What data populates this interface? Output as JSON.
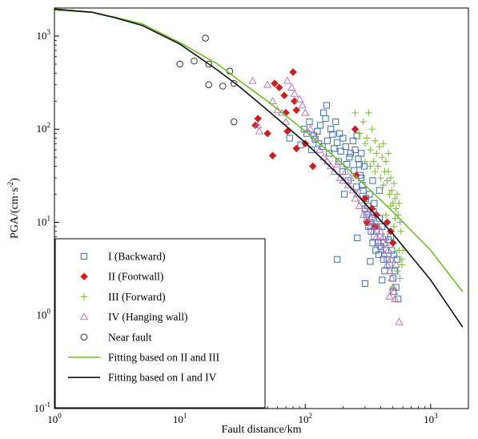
{
  "chart_data": {
    "type": "scatter",
    "xlabel": "Fault distance/km",
    "ylabel_parts": [
      "PGA/(cm·s",
      "-2",
      ")"
    ],
    "xscale": "log",
    "yscale": "log",
    "xlim": [
      1,
      2000
    ],
    "ylim": [
      0.1,
      2000
    ],
    "x_ticks": [
      {
        "value": 1,
        "base": "10",
        "exp": "0"
      },
      {
        "value": 10,
        "base": "10",
        "exp": "1"
      },
      {
        "value": 100,
        "base": "10",
        "exp": "2"
      },
      {
        "value": 1000,
        "base": "10",
        "exp": "3"
      }
    ],
    "y_ticks": [
      {
        "value": 0.1,
        "base": "10",
        "exp": "-1"
      },
      {
        "value": 1,
        "base": "10",
        "exp": "0"
      },
      {
        "value": 10,
        "base": "10",
        "exp": "1"
      },
      {
        "value": 100,
        "base": "10",
        "exp": "2"
      },
      {
        "value": 1000,
        "base": "10",
        "exp": "3"
      }
    ],
    "legend_position": "bottom-left",
    "series": [
      {
        "name": "I (Backward)",
        "marker": "square",
        "color": "#3a6fb0",
        "points": [
          [
            75,
            80
          ],
          [
            92,
            68
          ],
          [
            98,
            100
          ],
          [
            103,
            90
          ],
          [
            108,
            120
          ],
          [
            112,
            60
          ],
          [
            117,
            85
          ],
          [
            120,
            78
          ],
          [
            125,
            95
          ],
          [
            128,
            70
          ],
          [
            132,
            110
          ],
          [
            137,
            65
          ],
          [
            140,
            150
          ],
          [
            145,
            130
          ],
          [
            148,
            180
          ],
          [
            150,
            75
          ],
          [
            155,
            55
          ],
          [
            160,
            100
          ],
          [
            165,
            88
          ],
          [
            170,
            62
          ],
          [
            175,
            120
          ],
          [
            180,
            72
          ],
          [
            185,
            45
          ],
          [
            188,
            90
          ],
          [
            192,
            58
          ],
          [
            198,
            35
          ],
          [
            200,
            80
          ],
          [
            205,
            20
          ],
          [
            210,
            65
          ],
          [
            215,
            42
          ],
          [
            220,
            28
          ],
          [
            225,
            50
          ],
          [
            230,
            55
          ],
          [
            240,
            75
          ],
          [
            245,
            36
          ],
          [
            250,
            60
          ],
          [
            255,
            24
          ],
          [
            258,
            85
          ],
          [
            265,
            48
          ],
          [
            270,
            42
          ],
          [
            275,
            32
          ],
          [
            280,
            55
          ],
          [
            285,
            25
          ],
          [
            290,
            22
          ],
          [
            295,
            40
          ],
          [
            300,
            14
          ],
          [
            305,
            18
          ],
          [
            310,
            12
          ],
          [
            315,
            15
          ],
          [
            320,
            9
          ],
          [
            325,
            20
          ],
          [
            330,
            10
          ],
          [
            335,
            8
          ],
          [
            340,
            11
          ],
          [
            345,
            6
          ],
          [
            350,
            13
          ],
          [
            355,
            7
          ],
          [
            360,
            9
          ],
          [
            365,
            5
          ],
          [
            370,
            8
          ],
          [
            380,
            6
          ],
          [
            385,
            4.5
          ],
          [
            390,
            11
          ],
          [
            395,
            7
          ],
          [
            400,
            5.5
          ],
          [
            410,
            9
          ],
          [
            420,
            4
          ],
          [
            425,
            6
          ],
          [
            430,
            3
          ],
          [
            440,
            5
          ],
          [
            450,
            4
          ],
          [
            460,
            6.5
          ],
          [
            470,
            3.5
          ],
          [
            480,
            7
          ],
          [
            490,
            5
          ],
          [
            500,
            2.5
          ],
          [
            510,
            4.5
          ],
          [
            520,
            3
          ],
          [
            530,
            2
          ],
          [
            540,
            4
          ],
          [
            550,
            1.5
          ],
          [
            355,
            16
          ],
          [
            260,
            6.8
          ],
          [
            180,
            4
          ],
          [
            300,
            2.2
          ],
          [
            410,
            2.4
          ],
          [
            345,
            28
          ],
          [
            280,
            30
          ],
          [
            390,
            22
          ],
          [
            330,
            3.8
          ],
          [
            505,
            1.8
          ]
        ]
      },
      {
        "name": "II (Footwall)",
        "marker": "diamond",
        "color": "#cc1f1f",
        "points": [
          [
            40,
            110
          ],
          [
            42,
            130
          ],
          [
            50,
            90
          ],
          [
            55,
            52
          ],
          [
            57,
            310
          ],
          [
            62,
            280
          ],
          [
            68,
            230
          ],
          [
            70,
            150
          ],
          [
            72,
            95
          ],
          [
            80,
            410
          ],
          [
            82,
            200
          ],
          [
            85,
            160
          ],
          [
            85,
            62
          ],
          [
            100,
            70
          ],
          [
            115,
            40
          ],
          [
            250,
            100
          ],
          [
            255,
            32
          ],
          [
            300,
            18
          ],
          [
            310,
            10
          ],
          [
            340,
            14
          ],
          [
            360,
            9
          ],
          [
            370,
            12
          ],
          [
            450,
            10
          ],
          [
            480,
            8
          ],
          [
            500,
            6
          ]
        ]
      },
      {
        "name": "III (Forward)",
        "marker": "plus",
        "color": "#7fbf3f",
        "points": [
          [
            250,
            150
          ],
          [
            270,
            90
          ],
          [
            290,
            120
          ],
          [
            300,
            70
          ],
          [
            310,
            80
          ],
          [
            320,
            150
          ],
          [
            330,
            60
          ],
          [
            340,
            100
          ],
          [
            350,
            45
          ],
          [
            360,
            75
          ],
          [
            370,
            55
          ],
          [
            380,
            40
          ],
          [
            390,
            65
          ],
          [
            400,
            30
          ],
          [
            410,
            50
          ],
          [
            420,
            25
          ],
          [
            430,
            35
          ],
          [
            440,
            45
          ],
          [
            450,
            28
          ],
          [
            460,
            35
          ],
          [
            470,
            20
          ],
          [
            480,
            30
          ],
          [
            490,
            22
          ],
          [
            500,
            16
          ],
          [
            510,
            26
          ],
          [
            520,
            18
          ],
          [
            530,
            14
          ],
          [
            540,
            20
          ],
          [
            550,
            12
          ],
          [
            560,
            16
          ],
          [
            570,
            10
          ],
          [
            580,
            8
          ],
          [
            560,
            5
          ],
          [
            590,
            4
          ],
          [
            540,
            3
          ],
          [
            570,
            2.5
          ],
          [
            500,
            2
          ],
          [
            590,
            3.5
          ],
          [
            420,
            70
          ],
          [
            460,
            55
          ],
          [
            480,
            15
          ],
          [
            510,
            9
          ],
          [
            520,
            11
          ],
          [
            440,
            12
          ],
          [
            600,
            5
          ],
          [
            360,
            35
          ],
          [
            330,
            40
          ],
          [
            300,
            45
          ]
        ]
      },
      {
        "name": "IV (Hanging wall)",
        "marker": "triangle",
        "color": "#b56fb5",
        "points": [
          [
            38,
            330
          ],
          [
            42,
            110
          ],
          [
            43,
            95
          ],
          [
            50,
            300
          ],
          [
            55,
            200
          ],
          [
            60,
            160
          ],
          [
            65,
            150
          ],
          [
            70,
            120
          ],
          [
            72,
            330
          ],
          [
            78,
            280
          ],
          [
            82,
            240
          ],
          [
            90,
            210
          ],
          [
            95,
            180
          ],
          [
            100,
            150
          ],
          [
            110,
            100
          ],
          [
            120,
            80
          ],
          [
            130,
            60
          ],
          [
            140,
            50
          ],
          [
            150,
            45
          ],
          [
            160,
            40
          ],
          [
            170,
            35
          ],
          [
            180,
            42
          ],
          [
            190,
            30
          ],
          [
            200,
            28
          ],
          [
            210,
            35
          ],
          [
            220,
            25
          ],
          [
            230,
            30
          ],
          [
            240,
            22
          ],
          [
            250,
            18
          ],
          [
            260,
            20
          ],
          [
            270,
            15
          ],
          [
            280,
            17
          ],
          [
            290,
            12
          ],
          [
            300,
            14
          ],
          [
            310,
            11
          ],
          [
            320,
            13
          ],
          [
            330,
            9
          ],
          [
            340,
            10
          ],
          [
            350,
            8
          ],
          [
            360,
            12
          ],
          [
            370,
            7
          ],
          [
            380,
            9
          ],
          [
            390,
            6
          ],
          [
            400,
            8
          ],
          [
            410,
            5
          ],
          [
            420,
            7
          ],
          [
            430,
            4.5
          ],
          [
            440,
            6
          ],
          [
            450,
            3.5
          ],
          [
            460,
            5
          ],
          [
            470,
            3
          ],
          [
            480,
            4
          ],
          [
            490,
            2.5
          ],
          [
            500,
            2
          ],
          [
            510,
            1.8
          ],
          [
            520,
            1.5
          ],
          [
            560,
            0.85
          ],
          [
            470,
            1.6
          ],
          [
            530,
            3.5
          ]
        ]
      },
      {
        "name": "Near fault",
        "marker": "circle",
        "color": "#333333",
        "points": [
          [
            10,
            500
          ],
          [
            13,
            540
          ],
          [
            16,
            950
          ],
          [
            17,
            500
          ],
          [
            17,
            300
          ],
          [
            22,
            290
          ],
          [
            25,
            420
          ],
          [
            27,
            310
          ],
          [
            27,
            120
          ]
        ]
      }
    ],
    "fit_lines": [
      {
        "name": "Fitting based on II and III",
        "color": "#6fbf2a",
        "points": [
          [
            1,
            1900
          ],
          [
            2,
            1800
          ],
          [
            3,
            1600
          ],
          [
            5,
            1350
          ],
          [
            10,
            850
          ],
          [
            20,
            500
          ],
          [
            30,
            330
          ],
          [
            50,
            200
          ],
          [
            100,
            95
          ],
          [
            200,
            42
          ],
          [
            500,
            13
          ],
          [
            1000,
            5
          ],
          [
            1800,
            1.8
          ]
        ]
      },
      {
        "name": "Fitting based on I and IV",
        "color": "#111111",
        "points": [
          [
            1,
            1950
          ],
          [
            2,
            1800
          ],
          [
            3,
            1580
          ],
          [
            5,
            1300
          ],
          [
            10,
            820
          ],
          [
            20,
            430
          ],
          [
            30,
            285
          ],
          [
            50,
            160
          ],
          [
            100,
            72
          ],
          [
            200,
            29
          ],
          [
            500,
            7.5
          ],
          [
            1000,
            2.4
          ],
          [
            1800,
            0.75
          ]
        ]
      }
    ]
  }
}
